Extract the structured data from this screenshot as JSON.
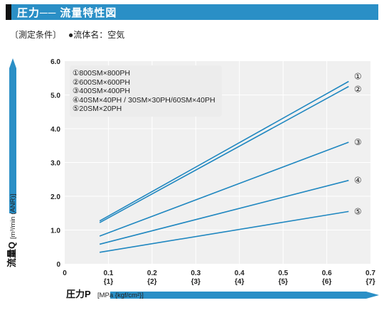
{
  "header": {
    "title": "圧力── 流量特性図"
  },
  "conditions": {
    "label": "〔測定条件〕",
    "fluid": "●流体名：空気"
  },
  "chart_data": {
    "type": "line",
    "xlabel_main": "圧力P",
    "xlabel_unit": "[MPa {kgf/cm²}]",
    "ylabel_main": "流量Q",
    "ylabel_unit": "[m³/min (ANR)]",
    "xlim": [
      0,
      0.7
    ],
    "ylim": [
      0,
      6.0
    ],
    "x_ticks": [
      "0",
      "0.1",
      "0.2",
      "0.3",
      "0.4",
      "0.5",
      "0.6",
      "0.7"
    ],
    "x_ticks_secondary": [
      "",
      "{1}",
      "{2}",
      "{3}",
      "{4}",
      "{5}",
      "{6}",
      "{7}"
    ],
    "y_ticks": [
      "0",
      "1.0",
      "2.0",
      "3.0",
      "4.0",
      "5.0",
      "6.0"
    ],
    "grid": true,
    "legend_position": "top-left",
    "series": [
      {
        "name": "①800SM×800PH",
        "marker": "①",
        "x": [
          0.08,
          0.65
        ],
        "values": [
          1.27,
          5.4
        ]
      },
      {
        "name": "②600SM×600PH",
        "marker": "②",
        "x": [
          0.08,
          0.65
        ],
        "values": [
          1.22,
          5.25
        ]
      },
      {
        "name": "③400SM×400PH",
        "marker": "③",
        "x": [
          0.08,
          0.65
        ],
        "values": [
          0.82,
          3.6
        ]
      },
      {
        "name": "④40SM×40PH / 30SM×30PH/60SM×40PH",
        "marker": "④",
        "x": [
          0.08,
          0.65
        ],
        "values": [
          0.58,
          2.47
        ]
      },
      {
        "name": "⑤20SM×20PH",
        "marker": "⑤",
        "x": [
          0.08,
          0.65
        ],
        "values": [
          0.34,
          1.55
        ]
      }
    ],
    "colors": {
      "line": "#1f87c0",
      "accent": "#2a8fc6",
      "plot_bg": "#f0f0f0",
      "grid": "#ffffff"
    }
  }
}
